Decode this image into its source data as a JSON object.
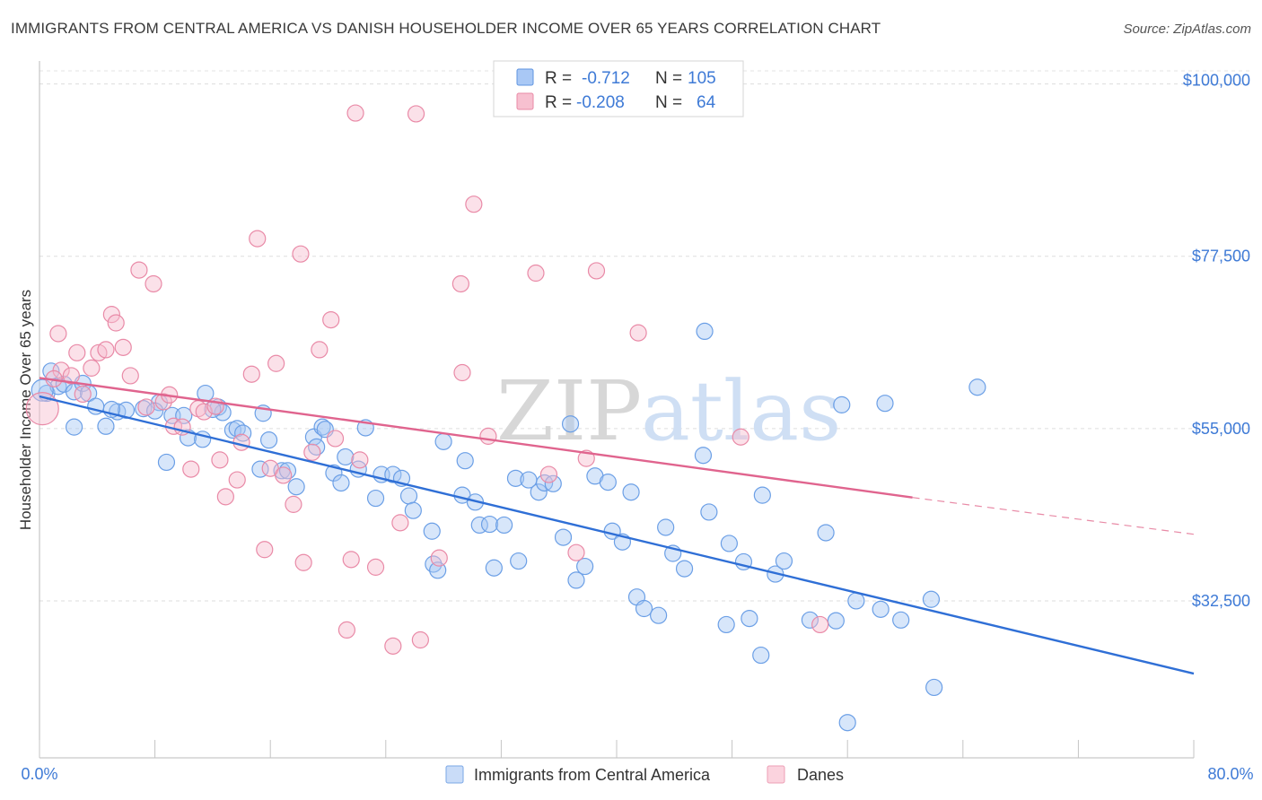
{
  "header": {
    "title": "IMMIGRANTS FROM CENTRAL AMERICA VS DANISH HOUSEHOLDER INCOME OVER 65 YEARS CORRELATION CHART",
    "source": "Source: ZipAtlas.com"
  },
  "watermark": {
    "part1": "ZIP",
    "part2": "atlas"
  },
  "legend": {
    "entries": [
      {
        "r_label": "R =",
        "r_value": "-0.712",
        "n_label": "N =",
        "n_value": "105",
        "color": "#a9c8f5",
        "stroke": "#5f94e0"
      },
      {
        "r_label": "R =",
        "r_value": "-0.208",
        "n_label": "N =",
        "n_value": "64",
        "color": "#f7c0d0",
        "stroke": "#e88aa6"
      }
    ]
  },
  "bottom_legend": [
    {
      "label": "Immigrants from Central America",
      "color": "#c9dcf8",
      "stroke": "#7aa7e6"
    },
    {
      "label": "Danes",
      "color": "#fbd3de",
      "stroke": "#ec9fb6"
    }
  ],
  "chart_data": {
    "type": "scatter",
    "xlabel": "",
    "ylabel": "Householder Income Over 65 years",
    "xlim": [
      0,
      80
    ],
    "ylim": [
      12000,
      103000
    ],
    "x_tick_labels": [
      "0.0%",
      "80.0%"
    ],
    "y_tick_labels": [
      "$32,500",
      "$55,000",
      "$77,500",
      "$100,000"
    ],
    "y_ticks": [
      32500,
      55000,
      77500,
      100000
    ],
    "grid": true,
    "series": [
      {
        "name": "Immigrants from Central America",
        "color": "#6b9fe6",
        "fill": "rgba(167,199,245,0.45)",
        "trend": {
          "x": [
            0,
            80
          ],
          "y": [
            59200,
            23000
          ],
          "dashed_from": null
        },
        "points": [
          [
            0.5,
            59.6
          ],
          [
            0.8,
            62.5
          ],
          [
            1.3,
            60.5
          ],
          [
            1.7,
            60.8
          ],
          [
            2.4,
            59.8
          ],
          [
            2.4,
            55.2
          ],
          [
            3.0,
            60.9
          ],
          [
            3.4,
            59.6
          ],
          [
            3.9,
            57.9
          ],
          [
            4.6,
            55.3
          ],
          [
            5.4,
            57.2
          ],
          [
            6.0,
            57.4
          ],
          [
            7.2,
            57.6
          ],
          [
            8.3,
            58.4
          ],
          [
            8.8,
            50.6
          ],
          [
            9.2,
            56.7
          ],
          [
            10.0,
            56.7
          ],
          [
            10.3,
            53.8
          ],
          [
            11.3,
            53.6
          ],
          [
            11.5,
            59.6
          ],
          [
            12.4,
            57.8
          ],
          [
            12.7,
            57.1
          ],
          [
            13.4,
            54.8
          ],
          [
            13.7,
            55.0
          ],
          [
            14.1,
            54.4
          ],
          [
            15.3,
            49.7
          ],
          [
            15.5,
            57.0
          ],
          [
            15.9,
            53.5
          ],
          [
            16.8,
            49.5
          ],
          [
            17.2,
            49.5
          ],
          [
            17.8,
            47.4
          ],
          [
            19.0,
            53.9
          ],
          [
            19.2,
            52.6
          ],
          [
            19.6,
            55.2
          ],
          [
            19.8,
            54.9
          ],
          [
            20.4,
            49.2
          ],
          [
            20.9,
            47.9
          ],
          [
            21.2,
            51.3
          ],
          [
            22.1,
            49.7
          ],
          [
            22.6,
            55.1
          ],
          [
            23.3,
            45.9
          ],
          [
            23.7,
            49.0
          ],
          [
            24.5,
            49.0
          ],
          [
            25.1,
            48.5
          ],
          [
            25.6,
            46.2
          ],
          [
            25.9,
            44.3
          ],
          [
            27.3,
            37.3
          ],
          [
            27.2,
            41.6
          ],
          [
            27.6,
            36.5
          ],
          [
            28.0,
            53.3
          ],
          [
            29.3,
            46.3
          ],
          [
            29.5,
            50.8
          ],
          [
            30.2,
            45.4
          ],
          [
            30.5,
            42.4
          ],
          [
            31.2,
            42.5
          ],
          [
            31.5,
            36.8
          ],
          [
            32.2,
            42.4
          ],
          [
            33.0,
            48.5
          ],
          [
            33.2,
            37.7
          ],
          [
            33.9,
            48.3
          ],
          [
            34.6,
            46.7
          ],
          [
            35.0,
            47.9
          ],
          [
            35.6,
            47.8
          ],
          [
            36.3,
            40.8
          ],
          [
            36.8,
            55.6
          ],
          [
            37.2,
            35.2
          ],
          [
            37.8,
            37.0
          ],
          [
            38.5,
            48.8
          ],
          [
            39.4,
            48.0
          ],
          [
            39.7,
            41.6
          ],
          [
            40.4,
            40.2
          ],
          [
            41.0,
            46.7
          ],
          [
            41.4,
            33.0
          ],
          [
            41.9,
            31.5
          ],
          [
            42.9,
            30.6
          ],
          [
            43.4,
            42.1
          ],
          [
            43.9,
            38.7
          ],
          [
            44.7,
            36.7
          ],
          [
            46.0,
            51.5
          ],
          [
            46.1,
            67.7
          ],
          [
            46.4,
            44.1
          ],
          [
            47.6,
            29.4
          ],
          [
            47.8,
            40.0
          ],
          [
            48.8,
            37.6
          ],
          [
            49.2,
            30.2
          ],
          [
            50.1,
            46.3
          ],
          [
            51.0,
            36.0
          ],
          [
            51.6,
            37.7
          ],
          [
            53.4,
            30.0
          ],
          [
            54.5,
            41.4
          ],
          [
            55.2,
            29.9
          ],
          [
            55.6,
            58.1
          ],
          [
            56.6,
            32.5
          ],
          [
            58.3,
            31.4
          ],
          [
            58.6,
            58.3
          ],
          [
            59.7,
            30.0
          ],
          [
            61.8,
            32.7
          ],
          [
            62.0,
            21.2
          ],
          [
            65.0,
            60.4
          ],
          [
            50.0,
            25.4
          ],
          [
            56.0,
            16.6
          ],
          [
            0.2,
            60.0
          ],
          [
            5.0,
            57.5
          ],
          [
            8.0,
            57.3
          ],
          [
            12.0,
            57.5
          ]
        ]
      },
      {
        "name": "Danes",
        "color": "#e98aa7",
        "fill": "rgba(247,188,206,0.45)",
        "trend": {
          "x": [
            0,
            60.5
          ],
          "y": [
            61600,
            46000
          ],
          "dashed_from": 60.5,
          "dashed_to": [
            80,
            41200
          ]
        },
        "points": [
          [
            0.2,
            57.6
          ],
          [
            1.3,
            67.4
          ],
          [
            1.5,
            62.6
          ],
          [
            2.2,
            61.9
          ],
          [
            2.6,
            64.9
          ],
          [
            3.0,
            59.5
          ],
          [
            3.6,
            62.9
          ],
          [
            4.1,
            64.9
          ],
          [
            4.6,
            65.3
          ],
          [
            5.0,
            69.9
          ],
          [
            5.3,
            68.8
          ],
          [
            5.8,
            65.6
          ],
          [
            6.3,
            61.9
          ],
          [
            6.9,
            75.7
          ],
          [
            7.4,
            57.8
          ],
          [
            7.9,
            73.9
          ],
          [
            8.6,
            58.5
          ],
          [
            9.0,
            59.4
          ],
          [
            9.3,
            55.3
          ],
          [
            9.9,
            55.2
          ],
          [
            10.5,
            49.7
          ],
          [
            11.0,
            57.6
          ],
          [
            11.4,
            57.2
          ],
          [
            12.2,
            57.9
          ],
          [
            12.5,
            50.9
          ],
          [
            12.9,
            46.1
          ],
          [
            13.7,
            48.3
          ],
          [
            14.0,
            53.2
          ],
          [
            14.7,
            62.1
          ],
          [
            15.1,
            79.8
          ],
          [
            15.6,
            39.2
          ],
          [
            16.0,
            49.8
          ],
          [
            16.4,
            63.5
          ],
          [
            16.9,
            48.9
          ],
          [
            17.6,
            45.1
          ],
          [
            18.1,
            77.8
          ],
          [
            18.3,
            37.5
          ],
          [
            18.9,
            51.9
          ],
          [
            19.4,
            65.3
          ],
          [
            20.2,
            69.2
          ],
          [
            20.5,
            53.7
          ],
          [
            21.3,
            28.7
          ],
          [
            21.6,
            37.9
          ],
          [
            21.9,
            96.2
          ],
          [
            22.2,
            50.9
          ],
          [
            23.3,
            36.9
          ],
          [
            24.5,
            26.6
          ],
          [
            25.0,
            42.7
          ],
          [
            26.1,
            96.1
          ],
          [
            26.4,
            27.4
          ],
          [
            27.7,
            38.1
          ],
          [
            29.2,
            73.9
          ],
          [
            29.3,
            62.3
          ],
          [
            30.1,
            84.3
          ],
          [
            31.1,
            54.0
          ],
          [
            34.4,
            75.3
          ],
          [
            35.3,
            49.0
          ],
          [
            37.2,
            38.8
          ],
          [
            37.9,
            51.1
          ],
          [
            38.6,
            75.6
          ],
          [
            41.5,
            67.5
          ],
          [
            48.6,
            53.9
          ],
          [
            54.1,
            29.4
          ],
          [
            1.0,
            61.5
          ]
        ]
      }
    ]
  }
}
